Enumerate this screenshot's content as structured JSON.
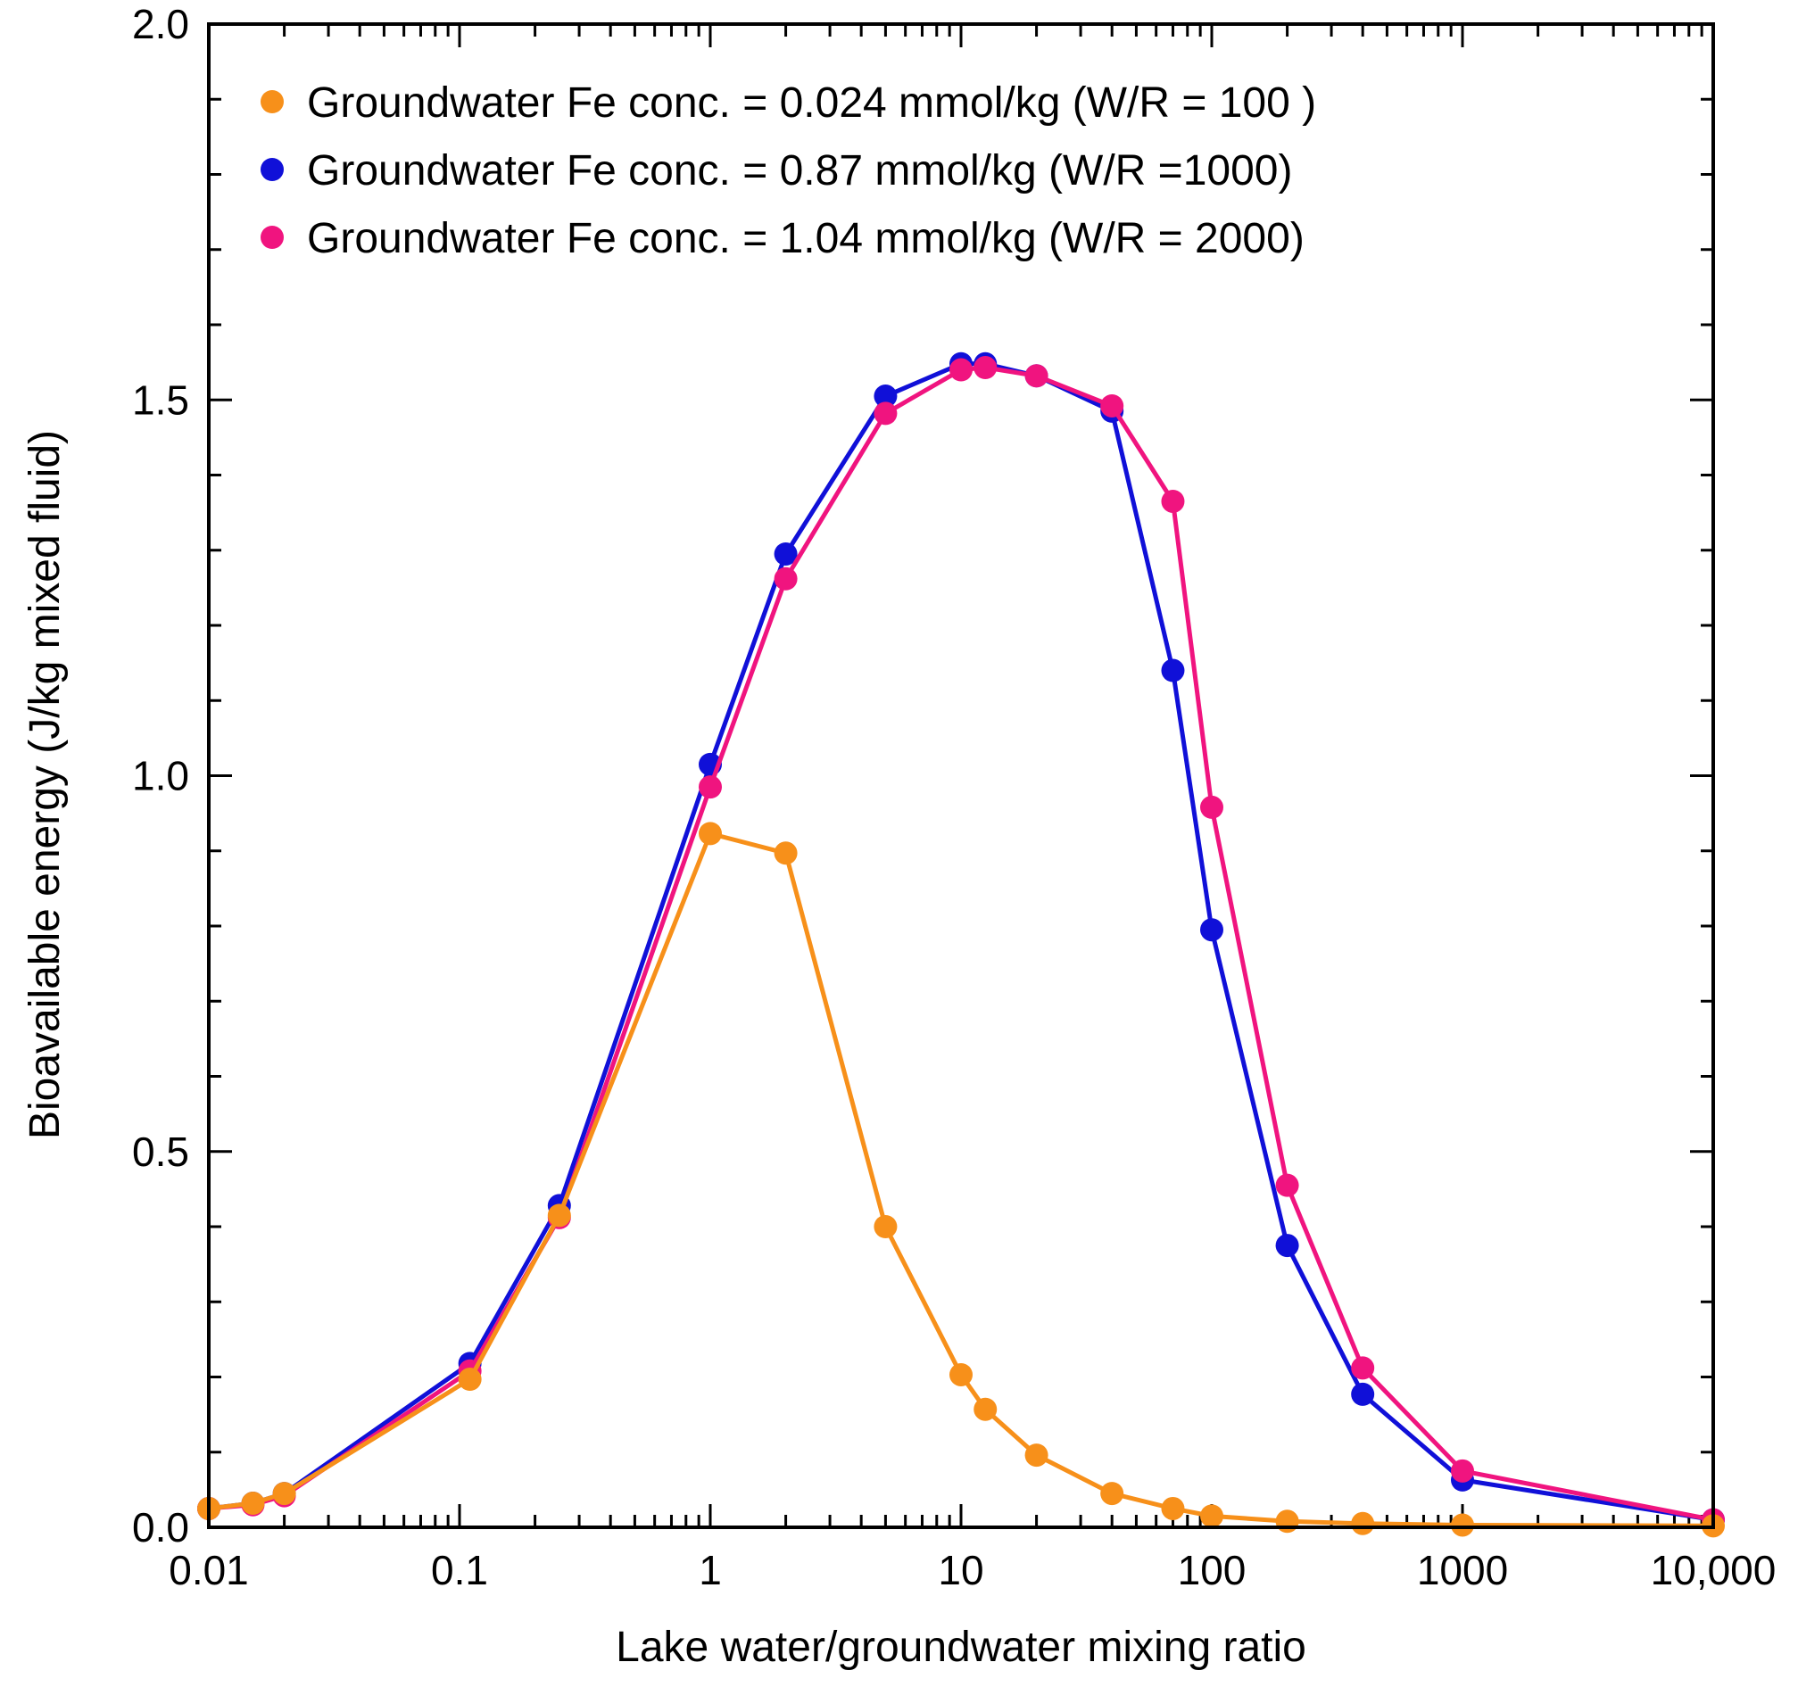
{
  "chart_data": {
    "type": "line",
    "xscale": "log",
    "xlabel": "Lake water/groundwater mixing ratio",
    "ylabel": "Bioavailable energy (J/kg mixed fluid)",
    "xlim": [
      0.01,
      10000
    ],
    "ylim": [
      0.0,
      2.0
    ],
    "x_ticks": [
      {
        "value": 0.01,
        "label": "0.01"
      },
      {
        "value": 0.1,
        "label": "0.1"
      },
      {
        "value": 1,
        "label": "1"
      },
      {
        "value": 10,
        "label": "10"
      },
      {
        "value": 100,
        "label": "100"
      },
      {
        "value": 1000,
        "label": "1000"
      },
      {
        "value": 10000,
        "label": "10,000"
      }
    ],
    "y_ticks": [
      {
        "value": 0.0,
        "label": "0.0"
      },
      {
        "value": 0.5,
        "label": "0.5"
      },
      {
        "value": 1.0,
        "label": "1.0"
      },
      {
        "value": 1.5,
        "label": "1.5"
      },
      {
        "value": 2.0,
        "label": "2.0"
      }
    ],
    "y_minor_step": 0.1,
    "legend_position": "top-left",
    "series": [
      {
        "name": "Groundwater Fe conc. = 0.87 mmol/kg (W/R =1000)",
        "color": "#1010d8",
        "x": [
          0.01,
          0.015,
          0.02,
          0.11,
          0.25,
          1,
          2,
          5,
          10,
          12.5,
          20,
          40,
          70,
          100,
          200,
          400,
          1000,
          10000
        ],
        "y": [
          0.025,
          0.032,
          0.045,
          0.218,
          0.428,
          1.015,
          1.295,
          1.505,
          1.548,
          1.548,
          1.532,
          1.485,
          1.14,
          0.795,
          0.375,
          0.177,
          0.063,
          0.01
        ]
      },
      {
        "name": "Groundwater Fe conc. = 1.04 mmol/kg (W/R = 2000)",
        "color": "#f0147f",
        "x": [
          0.01,
          0.015,
          0.02,
          0.11,
          0.25,
          1,
          2,
          5,
          10,
          12.5,
          20,
          40,
          70,
          100,
          200,
          400,
          1000,
          10000
        ],
        "y": [
          0.025,
          0.03,
          0.042,
          0.208,
          0.412,
          0.985,
          1.262,
          1.482,
          1.54,
          1.543,
          1.532,
          1.492,
          1.365,
          0.958,
          0.455,
          0.212,
          0.075,
          0.01
        ]
      },
      {
        "name": "Groundwater Fe conc. = 0.024 mmol/kg (W/R = 100 )",
        "color": "#f7901a",
        "x": [
          0.01,
          0.015,
          0.02,
          0.11,
          0.25,
          1,
          2,
          5,
          10,
          12.5,
          20,
          40,
          70,
          100,
          200,
          400,
          1000,
          10000
        ],
        "y": [
          0.025,
          0.032,
          0.045,
          0.197,
          0.415,
          0.923,
          0.897,
          0.4,
          0.203,
          0.157,
          0.096,
          0.045,
          0.025,
          0.015,
          0.008,
          0.005,
          0.003,
          0.002
        ]
      }
    ],
    "legend_order": [
      2,
      0,
      1
    ]
  }
}
